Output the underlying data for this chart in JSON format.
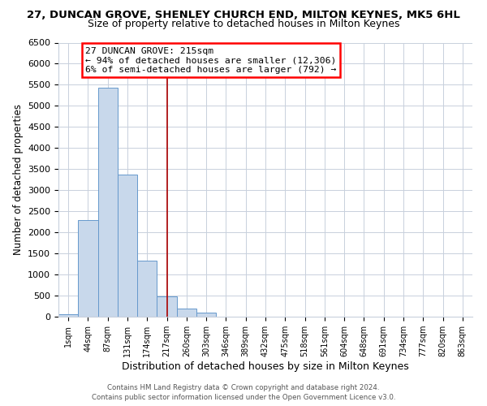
{
  "title1": "27, DUNCAN GROVE, SHENLEY CHURCH END, MILTON KEYNES, MK5 6HL",
  "title2": "Size of property relative to detached houses in Milton Keynes",
  "xlabel": "Distribution of detached houses by size in Milton Keynes",
  "ylabel": "Number of detached properties",
  "bar_labels": [
    "1sqm",
    "44sqm",
    "87sqm",
    "131sqm",
    "174sqm",
    "217sqm",
    "260sqm",
    "303sqm",
    "346sqm",
    "389sqm",
    "432sqm",
    "475sqm",
    "518sqm",
    "561sqm",
    "604sqm",
    "648sqm",
    "691sqm",
    "734sqm",
    "777sqm",
    "820sqm",
    "863sqm"
  ],
  "bar_values": [
    55,
    2290,
    5430,
    3380,
    1330,
    480,
    195,
    90,
    0,
    0,
    0,
    0,
    0,
    0,
    0,
    0,
    0,
    0,
    0,
    0,
    0
  ],
  "bar_color": "#c8d8eb",
  "bar_edge_color": "#6699cc",
  "annotation_line1": "27 DUNCAN GROVE: 215sqm",
  "annotation_line2": "← 94% of detached houses are smaller (12,306)",
  "annotation_line3": "6% of semi-detached houses are larger (792) →",
  "vline_x": 5.0,
  "vline_color": "#aa0000",
  "ylim": [
    0,
    6500
  ],
  "yticks": [
    0,
    500,
    1000,
    1500,
    2000,
    2500,
    3000,
    3500,
    4000,
    4500,
    5000,
    5500,
    6000,
    6500
  ],
  "footer1": "Contains HM Land Registry data © Crown copyright and database right 2024.",
  "footer2": "Contains public sector information licensed under the Open Government Licence v3.0.",
  "bg_color": "#ffffff",
  "grid_color": "#c8d0dc",
  "title1_fontsize": 9.5,
  "title2_fontsize": 9.0
}
